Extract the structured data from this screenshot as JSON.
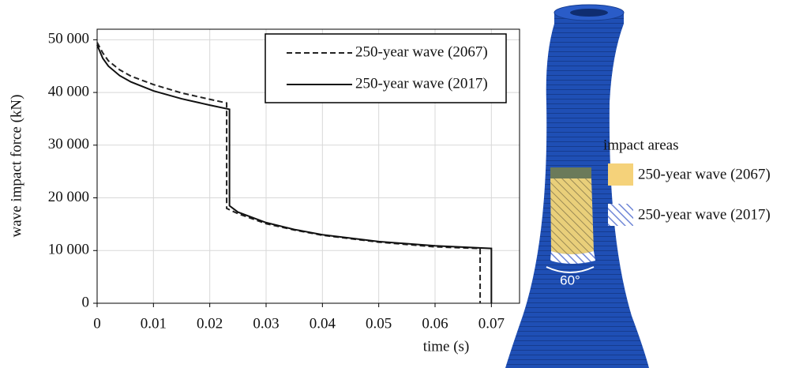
{
  "chart_data": {
    "type": "line",
    "x_label": "time (s)",
    "y_label": "wave impact force (kN)",
    "xlim": [
      0,
      0.075
    ],
    "ylim": [
      0,
      52000
    ],
    "xticks": [
      0,
      0.01,
      0.02,
      0.03,
      0.04,
      0.05,
      0.06,
      0.07
    ],
    "yticks": [
      0,
      {
        "value": 10000,
        "label": "10 000"
      },
      {
        "value": 20000,
        "label": "20 000"
      },
      {
        "value": 30000,
        "label": "30 000"
      },
      {
        "value": 40000,
        "label": "40 000"
      },
      {
        "value": 50000,
        "label": "50 000"
      }
    ],
    "grid": true,
    "legend": "upper right",
    "series": [
      {
        "name": "250-year wave (2067)",
        "color": "#222222",
        "dash": true,
        "x": [
          0,
          0.001,
          0.002,
          0.004,
          0.006,
          0.01,
          0.015,
          0.02,
          0.023,
          0.023,
          0.025,
          0.03,
          0.035,
          0.04,
          0.05,
          0.06,
          0.068,
          0.068
        ],
        "values": [
          49500,
          47500,
          46000,
          44300,
          43100,
          41500,
          39900,
          38700,
          38000,
          18000,
          17000,
          15100,
          13900,
          12900,
          11600,
          10700,
          10400,
          0
        ]
      },
      {
        "name": "250-year wave (2017)",
        "color": "#111111",
        "dash": false,
        "x": [
          0,
          0.001,
          0.002,
          0.004,
          0.006,
          0.01,
          0.015,
          0.02,
          0.0235,
          0.0235,
          0.025,
          0.03,
          0.035,
          0.04,
          0.05,
          0.06,
          0.07,
          0.07
        ],
        "values": [
          49000,
          46500,
          45000,
          43200,
          42000,
          40300,
          38800,
          37600,
          36800,
          18500,
          17300,
          15300,
          14000,
          13000,
          11700,
          10900,
          10400,
          0
        ]
      }
    ]
  },
  "figure": {
    "areas_title": "impact areas",
    "areas": [
      {
        "name": "250-year wave (2067)",
        "color": "#f5d27a"
      },
      {
        "name": "250-year wave (2017)",
        "color": "#6f86d6"
      }
    ],
    "angle_label": "60°"
  }
}
